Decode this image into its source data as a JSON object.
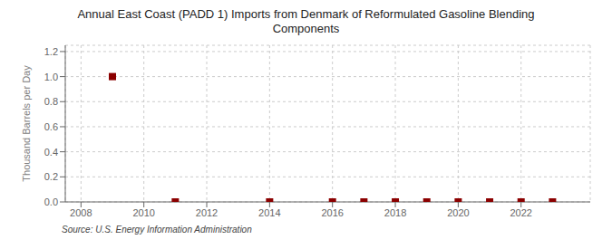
{
  "chart_data": {
    "type": "scatter",
    "title": "Annual East Coast (PADD 1) Imports from Denmark of Reformulated Gasoline Blending\nComponents",
    "ylabel": "Thousand Barrels per Day",
    "annotations": [
      "Source: U.S. Energy Information Administration"
    ],
    "x": [
      2009,
      2011,
      2014,
      2016,
      2017,
      2018,
      2019,
      2020,
      2021,
      2022,
      2023
    ],
    "values": [
      1.0,
      0.0,
      0.0,
      0.0,
      0.0,
      0.0,
      0.0,
      0.0,
      0.0,
      0.0,
      0.0
    ],
    "color": "#8b0000",
    "marker": "square",
    "xlim": [
      2007.5,
      2024.2
    ],
    "ylim": [
      0.0,
      1.25
    ],
    "xticks": [
      2008,
      2010,
      2012,
      2014,
      2016,
      2018,
      2020,
      2022
    ],
    "yticks": [
      {
        "value": 0.0,
        "label": "0.0"
      },
      0.2,
      0.4,
      0.6,
      0.8,
      {
        "value": 1.0,
        "label": "1.0"
      },
      1.2
    ],
    "grid": true
  }
}
